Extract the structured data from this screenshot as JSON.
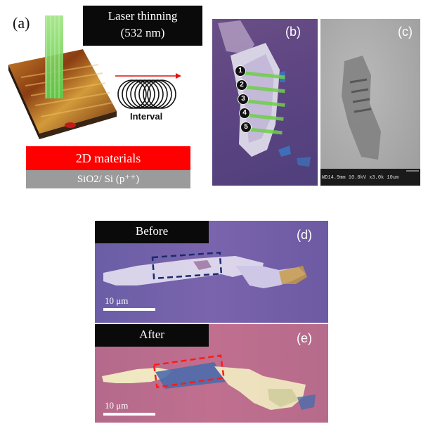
{
  "panel_a": {
    "label": "(a)",
    "laser_title_line1": "Laser thinning",
    "laser_title_line2": "(532 nm)",
    "interval_label": "Interval",
    "material_label": "2D materials",
    "substrate_label": "SiO2/ Si (p⁺⁺)"
  },
  "panel_b": {
    "label": "(b)",
    "markers": [
      "1",
      "2",
      "3",
      "4",
      "5"
    ]
  },
  "panel_c": {
    "label": "(c)",
    "sem_info": "WD14.9mm 10.0kV x3.0k   10um"
  },
  "panel_d": {
    "label": "(d)",
    "tag": "Before",
    "scale": "10 μm"
  },
  "panel_e": {
    "label": "(e)",
    "tag": "After",
    "scale": "10 μm"
  },
  "colors": {
    "material_red": "#ff0000",
    "substrate_gray": "#9b9b9b",
    "laser_green": "#7ddc5a",
    "before_box": "#1b2a6e",
    "after_box": "#ff1a1a"
  }
}
